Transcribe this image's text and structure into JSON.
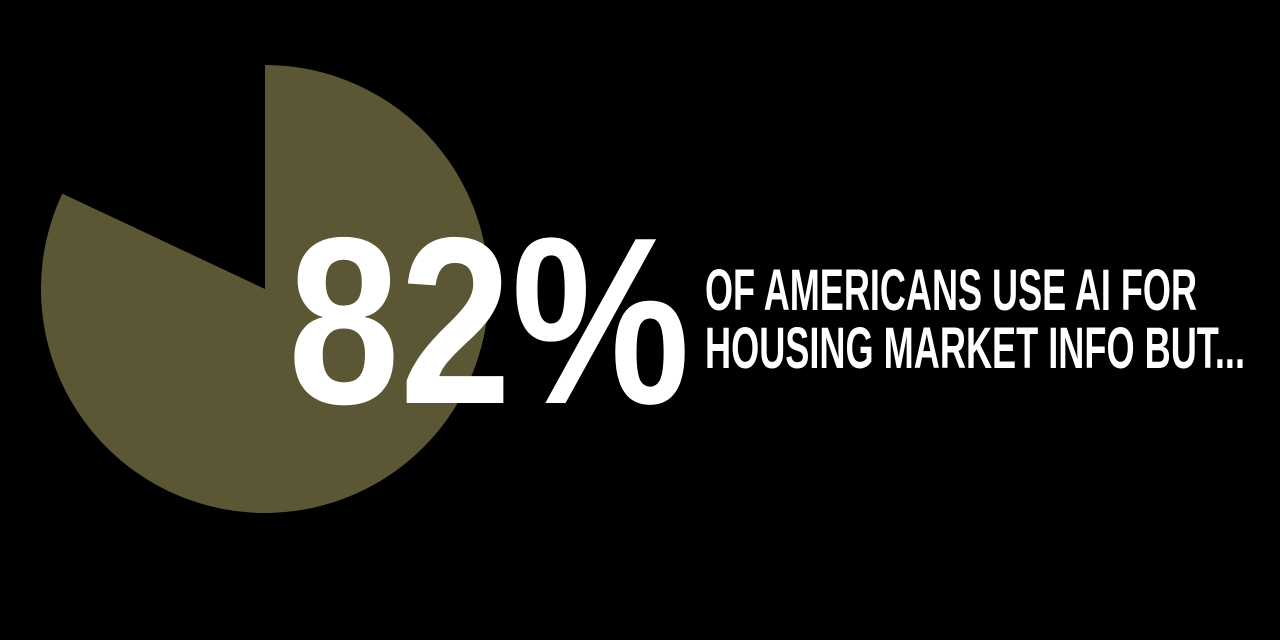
{
  "chart_data": {
    "type": "pie",
    "values": [
      82,
      18
    ],
    "colors": [
      "#5b5634",
      "#000000"
    ],
    "data_label": "82%",
    "annotation": [
      "OF AMERICANS USE AI FOR",
      "HOUSING MARKET INFO BUT..."
    ]
  }
}
